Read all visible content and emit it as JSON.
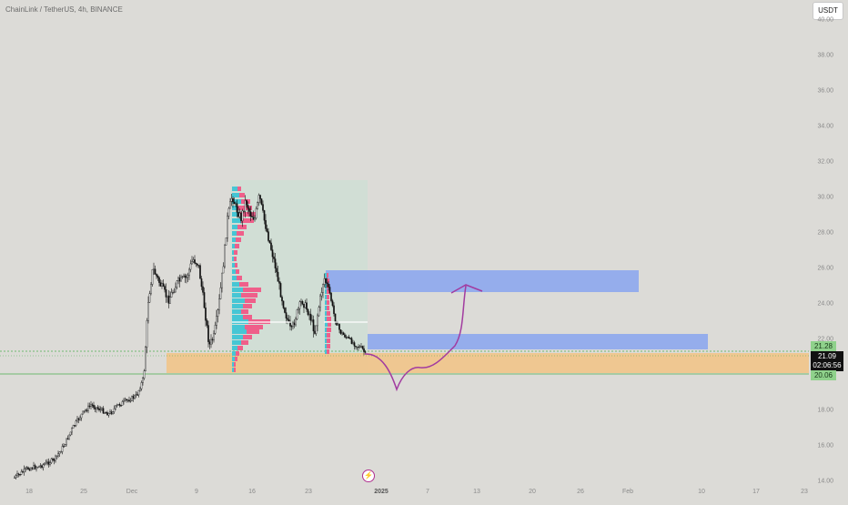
{
  "header": {
    "title": "ChainLink / TetherUS, 4h, BINANCE",
    "currency_button": "USDT"
  },
  "y_axis": {
    "ticks": [
      "40.00",
      "38.00",
      "36.00",
      "34.00",
      "32.00",
      "30.00",
      "28.00",
      "26.00",
      "24.00",
      "22.00",
      "20.00",
      "18.00",
      "16.00",
      "14.00"
    ]
  },
  "x_axis": {
    "ticks": [
      "18",
      "25",
      "Dec",
      "9",
      "16",
      "23",
      "2025",
      "7",
      "13",
      "20",
      "26",
      "Feb",
      "10",
      "17",
      "23"
    ],
    "bold_tick": "2025"
  },
  "price_labels": {
    "upper": "21.28",
    "current": "21.09",
    "countdown": "02:06:56",
    "lower": "20.06"
  },
  "colors": {
    "background": "#dcdbd7",
    "candle": "#111111",
    "demand_zone": "#f1c48a",
    "supply_zone": "#8da7ee",
    "projection_path": "#a23ba0",
    "volume_profile_up": "#45c6d4",
    "volume_profile_down": "#ef5f8a",
    "range_box": "#c8e0d4",
    "green_line": "#4caf50"
  },
  "icons": {
    "flash": "lightning-icon"
  }
}
